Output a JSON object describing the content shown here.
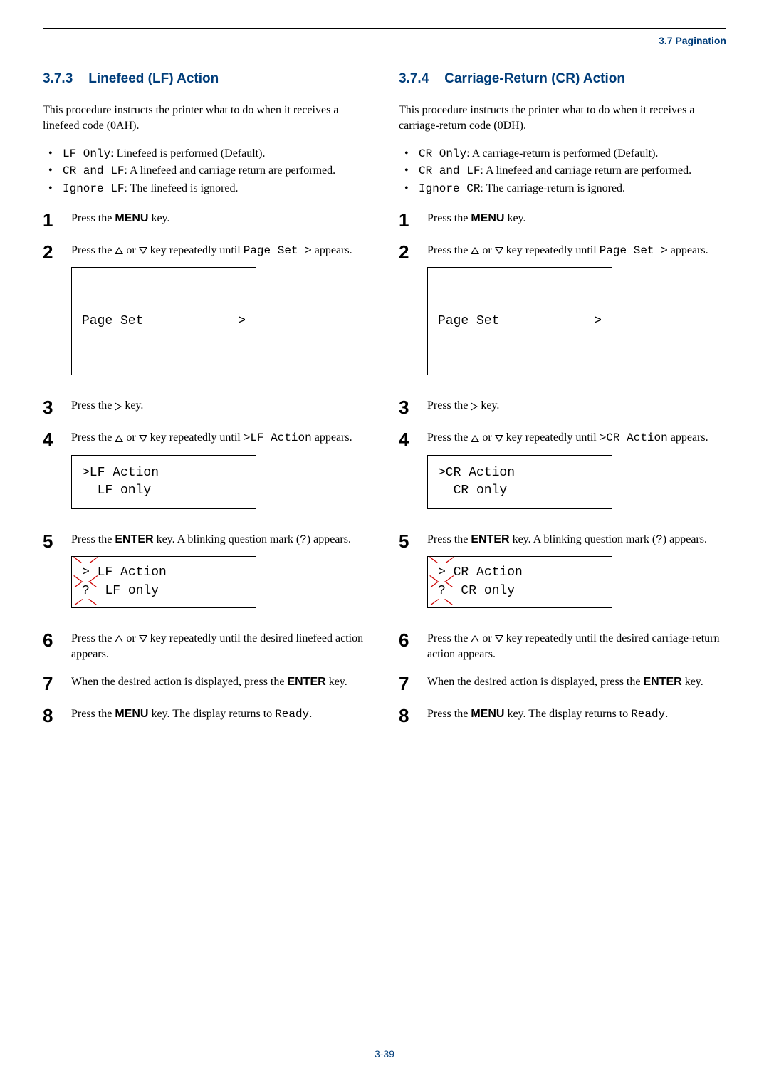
{
  "header": {
    "breadcrumb": "3.7 Pagination"
  },
  "left": {
    "section_num": "3.7.3",
    "section_title": "Linefeed (LF) Action",
    "intro": "This procedure instructs the printer what to do when it receives a linefeed code (0AH).",
    "bullets": [
      {
        "code": "LF Only",
        "text": ": Linefeed is performed (Default)."
      },
      {
        "code": "CR and LF",
        "text": ": A linefeed and carriage return are performed."
      },
      {
        "code": "Ignore LF",
        "text": ": The linefeed is ignored."
      }
    ],
    "steps": {
      "s1": {
        "pre": "Press the ",
        "key": "MENU",
        "post": " key."
      },
      "s2": {
        "pre": "Press the ",
        "mid": " key repeatedly until ",
        "code": "Page Set >",
        "post": " appears."
      },
      "s2_display_l1_left": "Page Set",
      "s2_display_l1_right": ">",
      "s3": {
        "pre": "Press the ",
        "post": " key."
      },
      "s4": {
        "pre": "Press the ",
        "mid": " key repeatedly until ",
        "code": ">LF Action",
        "post": " appears."
      },
      "s4_display_l1": ">LF Action",
      "s4_display_l2": "  LF only",
      "s5": {
        "pre": "Press the ",
        "key": "ENTER",
        "post1": " key. A blinking question mark (",
        "code": "?",
        "post2": ") appears."
      },
      "s5_display_l1": " LF Action",
      "s5_display_l2": "  LF only",
      "s5_blink_gt": ">",
      "s5_blink_q": "?",
      "s6": {
        "pre": "Press the ",
        "post": " key repeatedly until the desired linefeed action appears."
      },
      "s7": {
        "pre": "When the desired action is displayed, press the ",
        "key": "ENTER",
        "post": " key."
      },
      "s8": {
        "pre": "Press the ",
        "key": "MENU",
        "post1": " key. The display returns to ",
        "code": "Ready",
        "post2": "."
      }
    }
  },
  "right": {
    "section_num": "3.7.4",
    "section_title": "Carriage-Return (CR) Action",
    "intro": "This procedure instructs the printer what to do when it receives a carriage-return code (0DH).",
    "bullets": [
      {
        "code": "CR Only",
        "text": ": A carriage-return is performed (Default)."
      },
      {
        "code": "CR and LF",
        "text": ": A linefeed and carriage return are performed."
      },
      {
        "code": "Ignore CR",
        "text": ": The carriage-return is ignored."
      }
    ],
    "steps": {
      "s1": {
        "pre": "Press the ",
        "key": "MENU",
        "post": " key."
      },
      "s2": {
        "pre": "Press the ",
        "mid": " key repeatedly until ",
        "code": "Page Set >",
        "post": " appears."
      },
      "s2_display_l1_left": "Page Set",
      "s2_display_l1_right": ">",
      "s3": {
        "pre": "Press the ",
        "post": " key."
      },
      "s4": {
        "pre": "Press the ",
        "mid": " key repeatedly until ",
        "code": ">CR Action",
        "post": " appears."
      },
      "s4_display_l1": ">CR Action",
      "s4_display_l2": "  CR only",
      "s5": {
        "pre": "Press the ",
        "key": "ENTER",
        "post1": " key. A blinking question mark (",
        "code": "?",
        "post2": ") appears."
      },
      "s5_display_l1": " CR Action",
      "s5_display_l2": "  CR only",
      "s5_blink_gt": ">",
      "s5_blink_q": "?",
      "s6": {
        "pre": "Press the ",
        "post": " key repeatedly until the desired carriage-return action appears."
      },
      "s7": {
        "pre": "When the desired action is displayed, press the ",
        "key": "ENTER",
        "post": " key."
      },
      "s8": {
        "pre": "Press the ",
        "key": "MENU",
        "post1": " key. The display returns to ",
        "code": "Ready",
        "post2": "."
      }
    }
  },
  "footer": {
    "page": "3-39"
  },
  "step_numbers": [
    "1",
    "2",
    "3",
    "4",
    "5",
    "6",
    "7",
    "8"
  ]
}
